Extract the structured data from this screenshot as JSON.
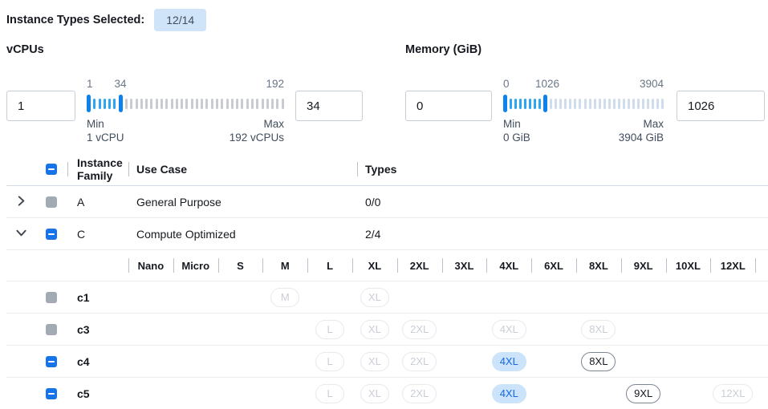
{
  "topbar": {
    "label": "Instance Types Selected:",
    "badge": "12/14"
  },
  "filters": {
    "vcpus": {
      "title": "vCPUs",
      "min_input": "1",
      "max_input": "34",
      "scale_start": "1",
      "scale_mid": "34",
      "scale_end": "192",
      "min_label": "Min",
      "min_detail": "1 vCPU",
      "max_label": "Max",
      "max_detail": "192 vCPUs",
      "ticks": {
        "filled": 5,
        "unfilled": 32
      }
    },
    "memory": {
      "title": "Memory (GiB)",
      "min_input": "0",
      "max_input": "1026",
      "scale_start": "0",
      "scale_mid": "1026",
      "scale_end": "3904",
      "min_label": "Min",
      "min_detail": "0 GiB",
      "max_label": "Max",
      "max_detail": "3904 GiB",
      "ticks": {
        "filled": 7,
        "unfilled": 24
      }
    }
  },
  "table": {
    "columns": {
      "family": "Instance Family",
      "use_case": "Use Case",
      "types": "Types"
    },
    "select_all_state": "indeterminate",
    "size_columns": [
      "Nano",
      "Micro",
      "S",
      "M",
      "L",
      "XL",
      "2XL",
      "3XL",
      "4XL",
      "6XL",
      "8XL",
      "9XL",
      "10XL",
      "12XL"
    ],
    "families": [
      {
        "name": "A",
        "use_case": "General Purpose",
        "types": "0/0",
        "expanded": false,
        "checkbox": "disabled",
        "instances": []
      },
      {
        "name": "C",
        "use_case": "Compute Optimized",
        "types": "2/4",
        "expanded": true,
        "checkbox": "indeterminate",
        "instances": [
          {
            "name": "c1",
            "checkbox": "disabled",
            "pills": [
              {
                "size": "M",
                "state": "disabled"
              },
              {
                "size": "XL",
                "state": "disabled"
              }
            ]
          },
          {
            "name": "c3",
            "checkbox": "disabled",
            "pills": [
              {
                "size": "L",
                "state": "disabled"
              },
              {
                "size": "XL",
                "state": "disabled"
              },
              {
                "size": "2XL",
                "state": "disabled"
              },
              {
                "size": "4XL",
                "state": "disabled"
              },
              {
                "size": "8XL",
                "state": "disabled"
              }
            ]
          },
          {
            "name": "c4",
            "checkbox": "indeterminate",
            "pills": [
              {
                "size": "L",
                "state": "disabled"
              },
              {
                "size": "XL",
                "state": "disabled"
              },
              {
                "size": "2XL",
                "state": "disabled"
              },
              {
                "size": "4XL",
                "state": "selected"
              },
              {
                "size": "8XL",
                "state": "enabled"
              }
            ]
          },
          {
            "name": "c5",
            "checkbox": "indeterminate",
            "pills": [
              {
                "size": "L",
                "state": "disabled"
              },
              {
                "size": "XL",
                "state": "disabled"
              },
              {
                "size": "2XL",
                "state": "disabled"
              },
              {
                "size": "4XL",
                "state": "selected"
              },
              {
                "size": "9XL",
                "state": "enabled"
              },
              {
                "size": "12XL",
                "state": "disabled"
              }
            ]
          }
        ]
      }
    ]
  },
  "colors": {
    "accent_blue": "#1774e8",
    "badge_bg": "#cfe4f9",
    "slider_handle": "#0c83ec",
    "slider_tick_filled": "#2da5f2",
    "selected_pill_bg": "#cbe3fb",
    "selected_pill_text": "#1668e3",
    "disabled_gray": "#a4aab3"
  }
}
